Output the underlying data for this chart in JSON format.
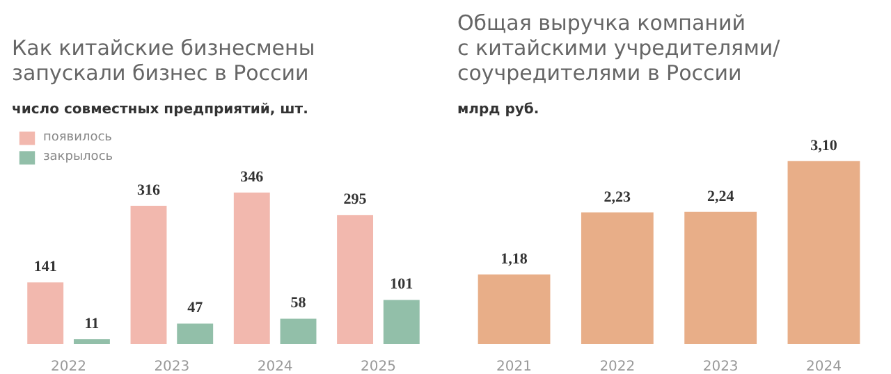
{
  "chart_data": [
    {
      "type": "bar",
      "title": "Как китайские бизнесмены\nзапускали бизнес в России",
      "subtitle": "число совместных предприятий, шт.",
      "categories": [
        "2022",
        "2023",
        "2024",
        "2025"
      ],
      "series": [
        {
          "name": "появилось",
          "color": "#f2b8ae",
          "values": [
            141,
            316,
            346,
            295
          ]
        },
        {
          "name": "закрылось",
          "color": "#92bfa9",
          "values": [
            11,
            47,
            58,
            101
          ]
        }
      ],
      "data_labels": true,
      "legend": "top left",
      "grid": false
    },
    {
      "type": "bar",
      "title": "Общая выручка компаний\nс китайскими учредителями/\nсоучредителями в России",
      "subtitle": "млрд руб.",
      "categories": [
        "2021",
        "2022",
        "2023",
        "2024"
      ],
      "values": [
        1.18,
        2.23,
        2.24,
        3.1
      ],
      "value_labels": [
        "1,18",
        "2,23",
        "2,24",
        "3,10"
      ],
      "color": "#e8ae88",
      "grid": false
    }
  ]
}
